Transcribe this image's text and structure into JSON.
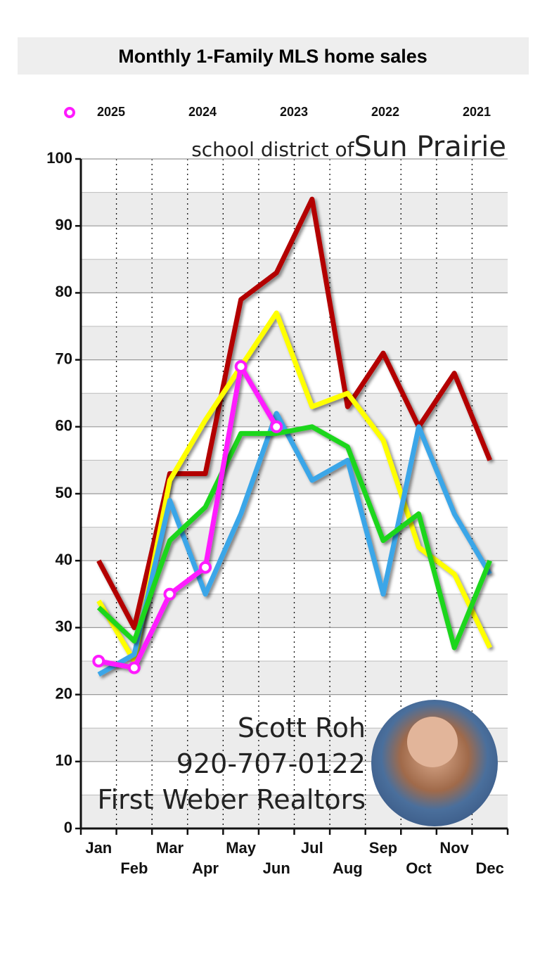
{
  "chart_data": {
    "type": "line",
    "title": "Monthly 1-Family MLS home sales",
    "subtitle": "school district of",
    "location": "Sun Prairie",
    "annotations": [
      "Scott Roh",
      "920-707-0122",
      "First Weber Realtors"
    ],
    "categories": [
      "Jan",
      "Feb",
      "Mar",
      "Apr",
      "May",
      "Jun",
      "Jul",
      "Aug",
      "Sep",
      "Oct",
      "Nov",
      "Dec"
    ],
    "series": [
      {
        "name": "2025",
        "color": "#ff1aff",
        "marker": "circle",
        "values": [
          25,
          24,
          35,
          39,
          69,
          60,
          null,
          null,
          null,
          null,
          null,
          null
        ]
      },
      {
        "name": "2024",
        "color": "#1ed61e",
        "values": [
          33,
          28,
          43,
          48,
          59,
          59,
          60,
          57,
          43,
          47,
          27,
          40
        ]
      },
      {
        "name": "2023",
        "color": "#3aa6e8",
        "values": [
          23,
          26,
          49,
          35,
          47,
          62,
          52,
          55,
          35,
          60,
          47,
          38
        ]
      },
      {
        "name": "2022",
        "color": "#ffff00",
        "values": [
          34,
          25,
          52,
          61,
          69,
          77,
          63,
          65,
          58,
          42,
          38,
          27
        ]
      },
      {
        "name": "2021",
        "color": "#b30000",
        "values": [
          40,
          30,
          53,
          53,
          79,
          83,
          94,
          63,
          71,
          60,
          68,
          55
        ]
      }
    ],
    "ylim": [
      0,
      100
    ],
    "yticks": [
      0,
      10,
      20,
      30,
      40,
      50,
      60,
      70,
      80,
      90,
      100
    ],
    "grid": true
  }
}
